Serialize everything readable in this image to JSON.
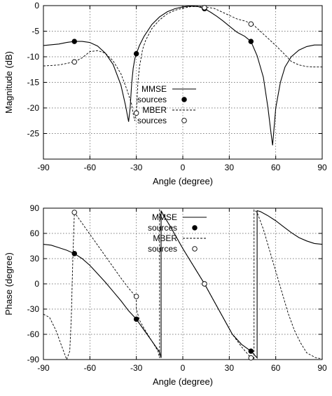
{
  "chart_data": [
    {
      "type": "line",
      "xlabel": "Angle (degree)",
      "ylabel": "Magnitude (dB)",
      "xlim": [
        -90,
        90
      ],
      "ylim": [
        -30,
        0
      ],
      "xticks": [
        -90,
        -60,
        -30,
        0,
        30,
        60,
        90
      ],
      "yticks": [
        0,
        -5,
        -10,
        -15,
        -20,
        -25
      ],
      "grid": true,
      "legend_position": "center",
      "series": [
        {
          "name": "MMSE",
          "style": "solid",
          "x": [
            -90,
            -80,
            -75,
            -70,
            -65,
            -60,
            -55,
            -50,
            -45,
            -40,
            -37,
            -35,
            -34,
            -33,
            -32,
            -31,
            -30,
            -28,
            -25,
            -20,
            -15,
            -10,
            -5,
            0,
            5,
            10,
            14,
            18,
            22,
            26,
            30,
            35,
            40,
            44,
            48,
            52,
            55,
            57,
            58,
            60,
            63,
            66,
            70,
            75,
            80,
            85,
            90
          ],
          "y": [
            -7.8,
            -7.5,
            -7.2,
            -7.0,
            -7.0,
            -7.2,
            -7.9,
            -9.3,
            -11.5,
            -15.5,
            -19.5,
            -22.7,
            -20.0,
            -15.2,
            -12.2,
            -10.4,
            -9.4,
            -7.8,
            -6.0,
            -3.7,
            -2.2,
            -1.2,
            -0.6,
            -0.25,
            -0.1,
            -0.2,
            -0.6,
            -1.3,
            -2.1,
            -3.0,
            -4.0,
            -5.2,
            -6.0,
            -7.0,
            -9.8,
            -14.0,
            -20.0,
            -25.0,
            -27.3,
            -20.0,
            -15.0,
            -12.0,
            -10.0,
            -8.7,
            -8.0,
            -7.7,
            -7.7
          ]
        },
        {
          "name": "sources",
          "style": "filled-circle",
          "x": [
            -70,
            -30,
            14,
            44
          ],
          "y": [
            -7.0,
            -9.4,
            -0.6,
            -7.0
          ]
        },
        {
          "name": "MBER",
          "style": "dashed",
          "x": [
            -90,
            -85,
            -80,
            -75,
            -70,
            -65,
            -60,
            -55,
            -50,
            -45,
            -40,
            -36,
            -33,
            -32,
            -31,
            -30,
            -29,
            -28,
            -26,
            -24,
            -20,
            -15,
            -10,
            -5,
            0,
            5,
            10,
            14,
            20,
            25,
            30,
            35,
            40,
            45,
            50,
            55,
            60,
            65,
            70,
            75,
            80,
            85,
            90
          ],
          "y": [
            -11.8,
            -11.7,
            -11.6,
            -11.3,
            -11.0,
            -10.2,
            -9.0,
            -8.8,
            -9.3,
            -10.8,
            -13.3,
            -16.5,
            -19.3,
            -21.2,
            -22.5,
            -21.0,
            -15.0,
            -12.0,
            -8.6,
            -6.8,
            -4.5,
            -2.8,
            -1.6,
            -0.9,
            -0.5,
            -0.2,
            -0.15,
            -0.3,
            -0.5,
            -1.2,
            -1.9,
            -2.6,
            -3.0,
            -3.6,
            -5.0,
            -6.4,
            -7.8,
            -9.3,
            -10.9,
            -11.6,
            -11.9,
            -12.0,
            -12.0
          ]
        },
        {
          "name": "sources",
          "style": "open-circle",
          "x": [
            -70,
            -30,
            14,
            44
          ],
          "y": [
            -11.0,
            -21.0,
            -0.4,
            -3.6
          ]
        }
      ]
    },
    {
      "type": "line",
      "xlabel": "Angle (degree)",
      "ylabel": "Phase (degree)",
      "xlim": [
        -90,
        90
      ],
      "ylim": [
        -90,
        90
      ],
      "xticks": [
        -90,
        -60,
        -30,
        0,
        30,
        60,
        90
      ],
      "yticks": [
        90,
        60,
        30,
        0,
        -30,
        -60,
        -90
      ],
      "grid": true,
      "legend_position": "top-right",
      "series": [
        {
          "name": "MMSE",
          "style": "solid",
          "x": [
            -90,
            -85,
            -80,
            -75,
            -70,
            -65,
            -60,
            -55,
            -50,
            -45,
            -40,
            -35,
            -30,
            -25,
            -20,
            -15,
            -14,
            -14,
            -12,
            -8,
            -4,
            0,
            4,
            8,
            14,
            20,
            26,
            32,
            38,
            44,
            48,
            48,
            50,
            55,
            60,
            65,
            70,
            75,
            80,
            85,
            90
          ],
          "y": [
            47,
            46,
            43,
            40,
            36,
            30,
            22,
            12,
            2,
            -9,
            -20,
            -32,
            -42,
            -55,
            -68,
            -81,
            -88,
            87,
            80,
            68,
            55,
            42,
            30,
            18,
            0,
            -20,
            -40,
            -60,
            -72,
            -80,
            -88,
            87,
            86,
            81,
            75,
            68,
            61,
            55,
            51,
            48,
            47
          ]
        },
        {
          "name": "sources",
          "style": "filled-circle",
          "x": [
            -70,
            -30,
            14,
            44
          ],
          "y": [
            36,
            -42,
            0,
            -80
          ]
        },
        {
          "name": "MBER",
          "style": "dashed",
          "x": [
            -90,
            -86,
            -82,
            -78,
            -76,
            -75,
            -73,
            -72,
            -71,
            -70,
            -65,
            -60,
            -55,
            -50,
            -45,
            -40,
            -35,
            -31,
            -30,
            -30,
            -28,
            -25,
            -20,
            -16,
            -15,
            -15,
            -12,
            -8,
            -4,
            0,
            4,
            8,
            14,
            20,
            26,
            32,
            38,
            44,
            46,
            46,
            48,
            52,
            56,
            60,
            64,
            68,
            72,
            76,
            80,
            86,
            90
          ],
          "y": [
            -36,
            -40,
            -55,
            -75,
            -85,
            -90,
            -80,
            -40,
            30,
            85,
            72,
            59,
            46,
            33,
            20,
            7,
            -5,
            -14,
            -15,
            -30,
            -43,
            -53,
            -68,
            -80,
            -88,
            88,
            80,
            68,
            55,
            42,
            30,
            18,
            0,
            -20,
            -40,
            -60,
            -75,
            -88,
            -89,
            88,
            85,
            65,
            40,
            15,
            -10,
            -35,
            -55,
            -70,
            -82,
            -88,
            -89
          ]
        },
        {
          "name": "sources",
          "style": "open-circle",
          "x": [
            -70,
            -30,
            14,
            44
          ],
          "y": [
            85,
            -15,
            0,
            -88
          ]
        }
      ]
    }
  ]
}
